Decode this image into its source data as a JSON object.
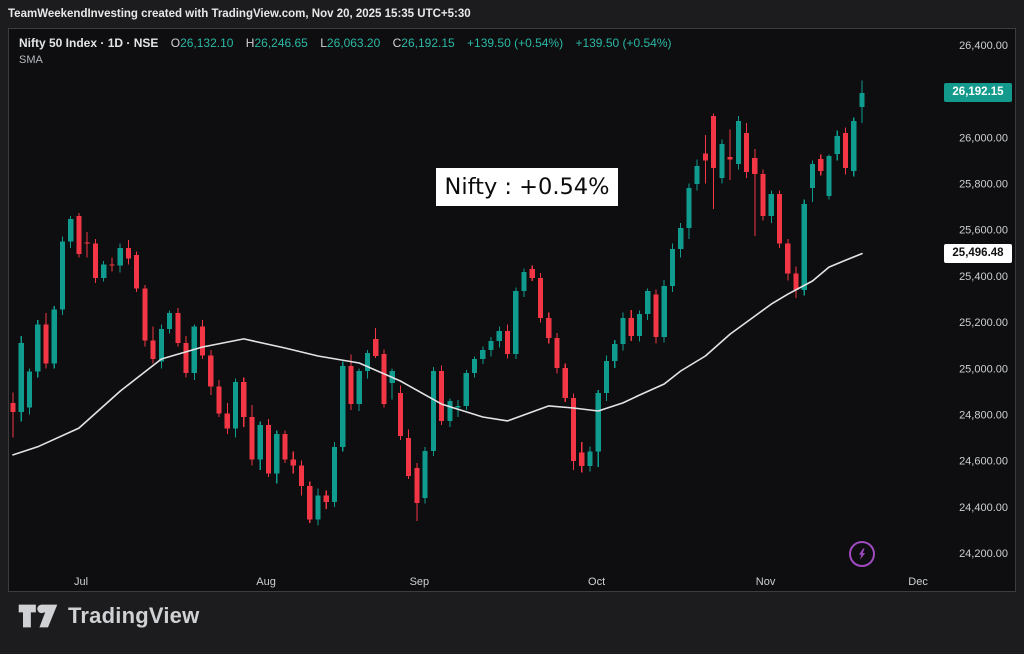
{
  "top_bar": {
    "text": "TeamWeekendInvesting created with TradingView.com, Nov 20, 2025 15:35 UTC+5:30"
  },
  "header": {
    "symbol": "Nifty 50 Index · 1D · NSE",
    "fields": [
      {
        "label": "O",
        "value": "26,132.10"
      },
      {
        "label": "H",
        "value": "26,246.65"
      },
      {
        "label": "L",
        "value": "26,063.20"
      },
      {
        "label": "C",
        "value": "26,192.15"
      }
    ],
    "changes": [
      "+139.50 (+0.54%)",
      "+139.50 (+0.54%)"
    ],
    "indicator": "SMA"
  },
  "annotation": {
    "text": "Nifty : +0.54%"
  },
  "badges": {
    "last_price": "26,192.15",
    "sma_value": "25,496.48"
  },
  "footer": {
    "brand": "TradingView"
  },
  "colors": {
    "up": "#0f9b8e",
    "down": "#f23645",
    "sma": "#e3e3e5",
    "badge_green": "#139a8c",
    "accent_purple": "#a04ac0"
  },
  "chart_data": {
    "type": "candlestick",
    "title": "Nifty 50 Index, Daily, NSE",
    "interval": "1D",
    "last_close": 26192.15,
    "sma_last": 25496.48,
    "price_axis": {
      "min": 24200,
      "max": 26400,
      "tick_step": 200
    },
    "price_ticks": [
      {
        "value": 26400,
        "label": "26,400.00"
      },
      {
        "value": 26200,
        "label": "26,200.00"
      },
      {
        "value": 26000,
        "label": "26,000.00"
      },
      {
        "value": 25800,
        "label": "25,800.00"
      },
      {
        "value": 25600,
        "label": "25,600.00"
      },
      {
        "value": 25400,
        "label": "25,400.00"
      },
      {
        "value": 25200,
        "label": "25,200.00"
      },
      {
        "value": 25000,
        "label": "25,000.00"
      },
      {
        "value": 24800,
        "label": "24,800.00"
      },
      {
        "value": 24600,
        "label": "24,600.00"
      },
      {
        "value": 24400,
        "label": "24,400.00"
      },
      {
        "value": 24200,
        "label": "24,200.00"
      }
    ],
    "x_ticks": [
      {
        "label": "Jul",
        "index": 8.25
      },
      {
        "label": "Aug",
        "index": 30.7
      },
      {
        "label": "Sep",
        "index": 49.3
      },
      {
        "label": "Oct",
        "index": 70.8
      },
      {
        "label": "Nov",
        "index": 91.3
      },
      {
        "label": "Dec",
        "index": 109.8
      }
    ],
    "candles": [
      [
        24850,
        24895,
        24700,
        24810
      ],
      [
        24810,
        25140,
        24770,
        25110
      ],
      [
        24830,
        25000,
        24800,
        24985
      ],
      [
        24985,
        25210,
        24960,
        25190
      ],
      [
        25190,
        25240,
        25000,
        25020
      ],
      [
        25020,
        25270,
        25000,
        25255
      ],
      [
        25255,
        25570,
        25230,
        25550
      ],
      [
        25550,
        25660,
        25520,
        25646
      ],
      [
        25660,
        25672,
        25480,
        25495
      ],
      [
        25545,
        25590,
        25480,
        25540
      ],
      [
        25540,
        25560,
        25370,
        25390
      ],
      [
        25390,
        25465,
        25375,
        25450
      ],
      [
        25450,
        25480,
        25420,
        25445
      ],
      [
        25445,
        25540,
        25415,
        25520
      ],
      [
        25520,
        25555,
        25450,
        25475
      ],
      [
        25490,
        25505,
        25330,
        25345
      ],
      [
        25345,
        25360,
        25095,
        25120
      ],
      [
        25120,
        25180,
        25020,
        25040
      ],
      [
        25030,
        25190,
        25000,
        25170
      ],
      [
        25170,
        25250,
        25150,
        25240
      ],
      [
        25240,
        25260,
        25095,
        25110
      ],
      [
        25110,
        25140,
        24960,
        24980
      ],
      [
        24980,
        25190,
        24950,
        25180
      ],
      [
        25180,
        25210,
        25040,
        25055
      ],
      [
        25055,
        25080,
        24885,
        24920
      ],
      [
        24920,
        24950,
        24790,
        24805
      ],
      [
        24805,
        24850,
        24715,
        24740
      ],
      [
        24740,
        24955,
        24700,
        24940
      ],
      [
        24940,
        24960,
        24745,
        24790
      ],
      [
        24790,
        24840,
        24580,
        24605
      ],
      [
        24605,
        24770,
        24560,
        24755
      ],
      [
        24755,
        24780,
        24530,
        24545
      ],
      [
        24545,
        24730,
        24500,
        24715
      ],
      [
        24715,
        24730,
        24590,
        24605
      ],
      [
        24605,
        24640,
        24545,
        24580
      ],
      [
        24580,
        24600,
        24450,
        24490
      ],
      [
        24490,
        24510,
        24330,
        24345
      ],
      [
        24345,
        24480,
        24320,
        24450
      ],
      [
        24450,
        24470,
        24390,
        24420
      ],
      [
        24420,
        24680,
        24400,
        24660
      ],
      [
        24660,
        25030,
        24640,
        25010
      ],
      [
        25010,
        25060,
        24820,
        24846
      ],
      [
        24846,
        25000,
        24815,
        24988
      ],
      [
        24988,
        25080,
        24955,
        25066
      ],
      [
        25127,
        25174,
        25045,
        25053
      ],
      [
        25062,
        25082,
        24830,
        24846
      ],
      [
        24936,
        25000,
        24865,
        24988
      ],
      [
        24893,
        24925,
        24690,
        24707
      ],
      [
        24698,
        24735,
        24520,
        24533
      ],
      [
        24568,
        24590,
        24339,
        24417
      ],
      [
        24438,
        24660,
        24415,
        24642
      ],
      [
        24642,
        25005,
        24620,
        24988
      ],
      [
        24988,
        25012,
        24755,
        24772
      ],
      [
        24772,
        24870,
        24745,
        24858
      ],
      [
        24830,
        24862,
        24790,
        24836
      ],
      [
        24836,
        24992,
        24820,
        24980
      ],
      [
        24980,
        25052,
        24960,
        25040
      ],
      [
        25040,
        25095,
        25018,
        25080
      ],
      [
        25080,
        25135,
        25052,
        25118
      ],
      [
        25118,
        25180,
        25090,
        25162
      ],
      [
        25162,
        25190,
        25042,
        25062
      ],
      [
        25062,
        25350,
        25040,
        25335
      ],
      [
        25335,
        25432,
        25308,
        25417
      ],
      [
        25430,
        25445,
        25378,
        25390
      ],
      [
        25390,
        25412,
        25198,
        25218
      ],
      [
        25218,
        25242,
        25108,
        25131
      ],
      [
        25131,
        25152,
        24978,
        25001
      ],
      [
        25001,
        25020,
        24855,
        24871
      ],
      [
        24871,
        24890,
        24560,
        24598
      ],
      [
        24636,
        24680,
        24548,
        24577
      ],
      [
        24577,
        24662,
        24552,
        24640
      ],
      [
        24640,
        24905,
        24572,
        24893
      ],
      [
        24893,
        25055,
        24858,
        25032
      ],
      [
        25032,
        25122,
        25002,
        25105
      ],
      [
        25105,
        25242,
        25078,
        25218
      ],
      [
        25218,
        25252,
        25118,
        25140
      ],
      [
        25140,
        25250,
        25115,
        25235
      ],
      [
        25235,
        25345,
        25210,
        25335
      ],
      [
        25320,
        25342,
        25108,
        25135
      ],
      [
        25135,
        25382,
        25112,
        25356
      ],
      [
        25356,
        25540,
        25330,
        25516
      ],
      [
        25516,
        25630,
        25480,
        25608
      ],
      [
        25608,
        25800,
        25560,
        25781
      ],
      [
        25798,
        25905,
        25770,
        25876
      ],
      [
        25930,
        26010,
        25800,
        25900
      ],
      [
        26092,
        26104,
        25690,
        25867
      ],
      [
        25824,
        25990,
        25800,
        25971
      ],
      [
        25915,
        26035,
        25815,
        25905
      ],
      [
        25884,
        26093,
        25860,
        26071
      ],
      [
        26019,
        26062,
        25824,
        25850
      ],
      [
        25910,
        25950,
        25573,
        25841
      ],
      [
        25841,
        25860,
        25640,
        25660
      ],
      [
        25660,
        25770,
        25630,
        25755
      ],
      [
        25755,
        25770,
        25520,
        25540
      ],
      [
        25540,
        25560,
        25380,
        25410
      ],
      [
        25410,
        25440,
        25304,
        25340
      ],
      [
        25340,
        25730,
        25315,
        25712
      ],
      [
        25781,
        25900,
        25720,
        25885
      ],
      [
        25907,
        25925,
        25835,
        25855
      ],
      [
        25746,
        25925,
        25730,
        25919
      ],
      [
        25928,
        26030,
        25900,
        26006
      ],
      [
        26019,
        26042,
        25840,
        25867
      ],
      [
        25854,
        26085,
        25830,
        26071
      ],
      [
        26132.1,
        26246.65,
        26063.2,
        26192.15
      ]
    ],
    "sma": [
      [
        0,
        24625
      ],
      [
        3,
        24660
      ],
      [
        8,
        24741
      ],
      [
        13,
        24901
      ],
      [
        18,
        25040
      ],
      [
        23,
        25092
      ],
      [
        28,
        25127
      ],
      [
        33,
        25088
      ],
      [
        37,
        25053
      ],
      [
        42,
        25023
      ],
      [
        47,
        24945
      ],
      [
        52,
        24845
      ],
      [
        57,
        24789
      ],
      [
        60,
        24772
      ],
      [
        65,
        24837
      ],
      [
        68,
        24828
      ],
      [
        71,
        24815
      ],
      [
        74,
        24850
      ],
      [
        76,
        24884
      ],
      [
        79,
        24932
      ],
      [
        81,
        24988
      ],
      [
        84,
        25053
      ],
      [
        87,
        25148
      ],
      [
        90,
        25226
      ],
      [
        92,
        25278
      ],
      [
        94,
        25321
      ],
      [
        97,
        25378
      ],
      [
        99,
        25438
      ],
      [
        101,
        25468
      ],
      [
        103,
        25496.48
      ]
    ],
    "legend_position": "top-left",
    "grid": false
  }
}
